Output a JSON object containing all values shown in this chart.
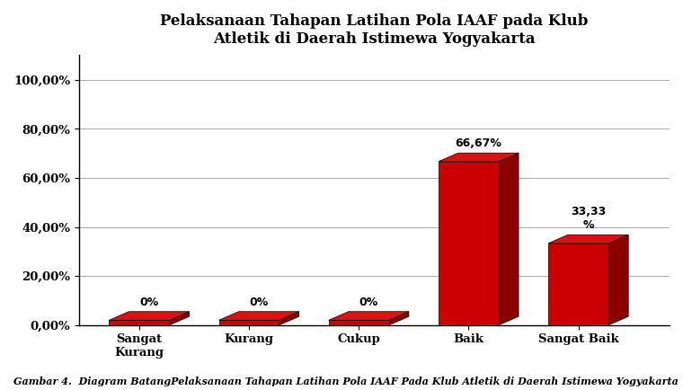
{
  "title": "Pelaksanaan Tahapan Latihan Pola IAAF pada Klub\nAtletik di Daerah Istimewa Yogyakarta",
  "categories": [
    "Sangat\nKurang",
    "Kurang",
    "Cukup",
    "Baik",
    "Sangat Baik"
  ],
  "values": [
    0.0,
    0.0,
    0.0,
    66.67,
    33.33
  ],
  "bar_color": "#CC0000",
  "bar_color_dark": "#8B0000",
  "bar_color_top": "#DD1111",
  "background_color": "#ffffff",
  "plot_bg_color": "#ffffff",
  "yticks": [
    0,
    20,
    40,
    60,
    80,
    100
  ],
  "ytick_labels": [
    "0,00%",
    "20,00%",
    "40,00%",
    "60,00%",
    "80,00%",
    "100,00%"
  ],
  "ylim": [
    0,
    110
  ],
  "bar_labels": [
    "0%",
    "0%",
    "0%",
    "66,67%",
    "33,33\n%"
  ],
  "title_fontsize": 12,
  "tick_fontsize": 9.5,
  "caption": "Gambar 4.  Diagram BatangPelaksanaan Tahapan Latihan Pola IAAF Pada Klub Atletik di Daerah Istimewa Yogyakarta",
  "caption_fontsize": 8
}
